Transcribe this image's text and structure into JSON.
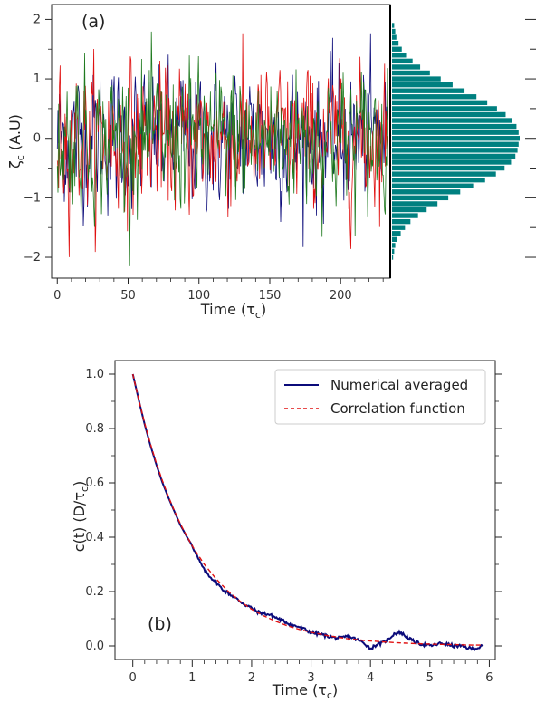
{
  "chart_data": [
    {
      "panel": "(a)",
      "type": "line",
      "xlabel": "Time (τ_c)",
      "ylabel": "ζ_c (A.U)",
      "xlim": [
        -4,
        235
      ],
      "ylim": [
        -2.35,
        2.25
      ],
      "xticks": [
        0,
        50,
        100,
        150,
        200
      ],
      "yticks": [
        -2,
        -1,
        0,
        1,
        2
      ],
      "series_colors": [
        "#0b0b7a",
        "#1f7a1f",
        "#e01010"
      ],
      "series_note_values": {
        "n_points": 470,
        "amplitude_sd": 0.52
      },
      "histogram": {
        "color": "#008080",
        "bin_edges": [
          -2.05,
          -1.95,
          -1.85,
          -1.75,
          -1.65,
          -1.55,
          -1.45,
          -1.35,
          -1.25,
          -1.15,
          -1.05,
          -0.95,
          -0.85,
          -0.75,
          -0.65,
          -0.55,
          -0.45,
          -0.35,
          -0.25,
          -0.15,
          -0.05,
          0.05,
          0.15,
          0.25,
          0.35,
          0.45,
          0.55,
          0.65,
          0.75,
          0.85,
          0.95,
          1.05,
          1.15,
          1.25,
          1.35,
          1.45,
          1.55,
          1.65,
          1.75,
          1.85,
          1.95
        ],
        "counts": [
          1,
          2,
          3,
          5,
          8,
          12,
          17,
          24,
          32,
          42,
          52,
          63,
          75,
          86,
          96,
          104,
          110,
          114,
          116,
          117,
          118,
          117,
          115,
          111,
          105,
          97,
          88,
          78,
          67,
          56,
          45,
          35,
          26,
          19,
          13,
          9,
          6,
          4,
          3,
          2
        ]
      }
    },
    {
      "panel": "(b)",
      "type": "line",
      "xlabel": "Time (τ_c)",
      "ylabel": "c(t) (D/τ_c)",
      "xlim": [
        -0.3,
        6.1
      ],
      "ylim": [
        -0.05,
        1.05
      ],
      "xticks": [
        0,
        1,
        2,
        3,
        4,
        5,
        6
      ],
      "yticks": [
        0.0,
        0.2,
        0.4,
        0.6,
        0.8,
        1.0
      ],
      "series": [
        {
          "name": "Numerical averaged",
          "color": "#0b0b7a",
          "x": [
            0,
            0.1,
            0.2,
            0.3,
            0.4,
            0.5,
            0.6,
            0.7,
            0.8,
            0.9,
            1.0,
            1.1,
            1.2,
            1.3,
            1.4,
            1.5,
            1.6,
            1.7,
            1.8,
            1.9,
            2.0,
            2.1,
            2.2,
            2.3,
            2.4,
            2.5,
            2.6,
            2.7,
            2.8,
            2.9,
            3.0,
            3.1,
            3.2,
            3.3,
            3.4,
            3.5,
            3.6,
            3.7,
            3.8,
            3.9,
            4.0,
            4.1,
            4.2,
            4.3,
            4.4,
            4.5,
            4.6,
            4.7,
            4.8,
            4.9,
            5.0,
            5.1,
            5.2,
            5.3,
            5.4,
            5.5,
            5.6,
            5.7,
            5.8,
            5.9
          ],
          "y": [
            1.0,
            0.905,
            0.815,
            0.735,
            0.665,
            0.6,
            0.545,
            0.495,
            0.445,
            0.405,
            0.37,
            0.32,
            0.28,
            0.255,
            0.235,
            0.21,
            0.195,
            0.18,
            0.165,
            0.15,
            0.14,
            0.125,
            0.12,
            0.115,
            0.105,
            0.095,
            0.085,
            0.075,
            0.07,
            0.06,
            0.05,
            0.045,
            0.04,
            0.035,
            0.03,
            0.028,
            0.035,
            0.03,
            0.02,
            0.01,
            -0.01,
            0.005,
            0.01,
            0.025,
            0.045,
            0.05,
            0.035,
            0.02,
            0.01,
            0.005,
            0.0,
            0.005,
            0.01,
            0.005,
            0.0,
            0.0,
            -0.005,
            -0.01,
            -0.008,
            0.0
          ]
        },
        {
          "name": "Correlation function",
          "color": "#e01010",
          "dashed": true,
          "x": [
            0,
            0.1,
            0.2,
            0.3,
            0.4,
            0.5,
            0.6,
            0.7,
            0.8,
            0.9,
            1.0,
            1.2,
            1.4,
            1.6,
            1.8,
            2.0,
            2.2,
            2.4,
            2.6,
            2.8,
            3.0,
            3.3,
            3.6,
            3.9,
            4.2,
            4.5,
            4.8,
            5.1,
            5.4,
            5.7,
            5.9
          ],
          "y": [
            1.0,
            0.905,
            0.819,
            0.741,
            0.67,
            0.607,
            0.549,
            0.497,
            0.449,
            0.407,
            0.368,
            0.301,
            0.247,
            0.202,
            0.165,
            0.135,
            0.111,
            0.091,
            0.074,
            0.061,
            0.05,
            0.037,
            0.027,
            0.02,
            0.015,
            0.011,
            0.008,
            0.006,
            0.005,
            0.003,
            0.003
          ]
        }
      ]
    }
  ],
  "text": {
    "panel_a_tag": "(a)",
    "panel_b_tag": "(b)",
    "a_ylabel_main": "ζ",
    "a_ylabel_sub": "c",
    "a_ylabel_rest": " (A.U)",
    "a_xlabel_main": "Time (τ",
    "a_xlabel_sub": "c",
    "a_xlabel_end": ")",
    "b_ylabel_main": "c(t) (D/τ",
    "b_ylabel_sub": "c",
    "b_ylabel_end": ")",
    "b_xlabel_main": "Time (τ",
    "b_xlabel_sub": "c",
    "b_xlabel_end": ")",
    "legend_1": "Numerical averaged",
    "legend_2": "Correlation function",
    "a_xtick_0": "0",
    "a_xtick_1": "50",
    "a_xtick_2": "100",
    "a_xtick_3": "150",
    "a_xtick_4": "200",
    "a_ytick_0": "−2",
    "a_ytick_1": "−1",
    "a_ytick_2": "0",
    "a_ytick_3": "1",
    "a_ytick_4": "2",
    "b_xtick_0": "0",
    "b_xtick_1": "1",
    "b_xtick_2": "2",
    "b_xtick_3": "3",
    "b_xtick_4": "4",
    "b_xtick_5": "5",
    "b_xtick_6": "6",
    "b_ytick_0": "0.0",
    "b_ytick_1": "0.2",
    "b_ytick_2": "0.4",
    "b_ytick_3": "0.6",
    "b_ytick_4": "0.8",
    "b_ytick_5": "1.0"
  }
}
